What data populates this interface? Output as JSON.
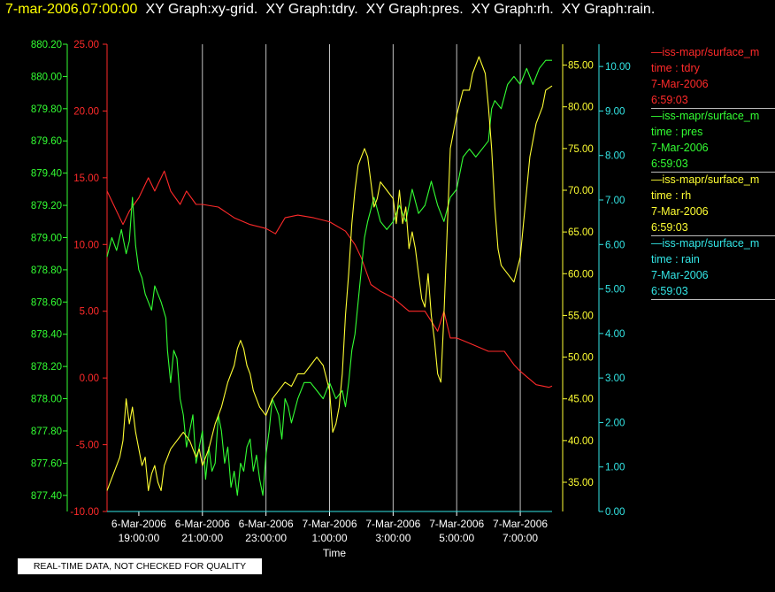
{
  "header": {
    "timestamp": "7-mar-2006,07:00:00",
    "graphs": [
      "XY Graph:xy-grid.",
      "XY Graph:tdry.",
      "XY Graph:pres.",
      "XY Graph:rh.",
      "XY Graph:rain."
    ]
  },
  "disclaimer": "REAL-TIME DATA, NOT CHECKED FOR QUALITY",
  "colors": {
    "tdry": "#ff2a2a",
    "pres": "#33ff33",
    "rh": "#ffff33",
    "rain": "#33e6e6",
    "grid": "#c0c0c0"
  },
  "chart_data": {
    "type": "line",
    "xlabel": "Time",
    "xlim": [
      "2006-03-06 18:00",
      "2006-03-07 07:00"
    ],
    "x_ticks": [
      {
        "date": "6-Mar-2006",
        "time": "19:00:00"
      },
      {
        "date": "6-Mar-2006",
        "time": "21:00:00"
      },
      {
        "date": "6-Mar-2006",
        "time": "23:00:00"
      },
      {
        "date": "7-Mar-2006",
        "time": "1:00:00"
      },
      {
        "date": "7-Mar-2006",
        "time": "3:00:00"
      },
      {
        "date": "7-Mar-2006",
        "time": "5:00:00"
      },
      {
        "date": "7-Mar-2006",
        "time": "7:00:00"
      }
    ],
    "grid": "vertical",
    "axes": {
      "pres": {
        "ylim": [
          877.3,
          880.2
        ],
        "ticks": [
          "880.20",
          "880.00",
          "879.80",
          "879.60",
          "879.40",
          "879.20",
          "879.00",
          "878.80",
          "878.60",
          "878.40",
          "878.20",
          "878.00",
          "877.80",
          "877.60",
          "877.40"
        ]
      },
      "tdry": {
        "ylim": [
          -10,
          25
        ],
        "ticks": [
          "25.00",
          "20.00",
          "15.00",
          "10.00",
          "5.00",
          "0.00",
          "-5.00",
          "-10.00"
        ]
      },
      "rh": {
        "ylim": [
          31.5,
          87.5
        ],
        "ticks": [
          "85.00",
          "80.00",
          "75.00",
          "70.00",
          "65.00",
          "60.00",
          "55.00",
          "50.00",
          "45.00",
          "40.00",
          "35.00"
        ]
      },
      "rain": {
        "ylim": [
          0,
          10.5
        ],
        "ticks": [
          "10.00",
          "9.00",
          "8.00",
          "7.00",
          "6.00",
          "5.00",
          "4.00",
          "3.00",
          "2.00",
          "1.00",
          "0.00"
        ]
      }
    },
    "legend": [
      {
        "key": "tdry",
        "series": "—iss-mapr/surface_m",
        "field": "time : tdry",
        "date": "7-Mar-2006",
        "time": "6:59:03"
      },
      {
        "key": "pres",
        "series": "—iss-mapr/surface_m",
        "field": "time : pres",
        "date": "7-Mar-2006",
        "time": "6:59:03"
      },
      {
        "key": "rh",
        "series": "—iss-mapr/surface_m",
        "field": "time : rh",
        "date": "7-Mar-2006",
        "time": "6:59:03"
      },
      {
        "key": "rain",
        "series": "—iss-mapr/surface_m",
        "field": "time : rain",
        "date": "7-Mar-2006",
        "time": "6:59:03"
      }
    ],
    "series": [
      {
        "key": "tdry",
        "axis": "tdry",
        "points": [
          [
            -1.0,
            14.0
          ],
          [
            -0.8,
            13.0
          ],
          [
            -0.5,
            11.5
          ],
          [
            -0.3,
            12.5
          ],
          [
            0.0,
            13.5
          ],
          [
            0.3,
            15.0
          ],
          [
            0.5,
            14.0
          ],
          [
            0.8,
            15.5
          ],
          [
            1.0,
            14.0
          ],
          [
            1.3,
            13.0
          ],
          [
            1.5,
            14.0
          ],
          [
            1.8,
            13.0
          ],
          [
            2.0,
            13.0
          ],
          [
            2.5,
            12.8
          ],
          [
            3.0,
            12.0
          ],
          [
            3.5,
            11.5
          ],
          [
            4.0,
            11.2
          ],
          [
            4.3,
            10.8
          ],
          [
            4.6,
            12.0
          ],
          [
            5.0,
            12.2
          ],
          [
            5.5,
            12.0
          ],
          [
            6.0,
            11.7
          ],
          [
            6.5,
            11.0
          ],
          [
            6.8,
            10.0
          ],
          [
            7.0,
            9.0
          ],
          [
            7.3,
            7.0
          ],
          [
            7.6,
            6.5
          ],
          [
            8.0,
            6.0
          ],
          [
            8.5,
            5.0
          ],
          [
            9.0,
            5.0
          ],
          [
            9.4,
            3.5
          ],
          [
            9.6,
            5.0
          ],
          [
            9.8,
            3.0
          ],
          [
            10.0,
            3.0
          ],
          [
            10.5,
            2.5
          ],
          [
            11.0,
            2.0
          ],
          [
            11.5,
            2.0
          ],
          [
            11.8,
            1.0
          ],
          [
            12.0,
            0.5
          ],
          [
            12.5,
            -0.5
          ],
          [
            12.9,
            -0.7
          ],
          [
            13.0,
            -0.6
          ]
        ]
      },
      {
        "key": "pres",
        "axis": "pres",
        "points": [
          [
            -1.0,
            878.88
          ],
          [
            -0.85,
            879.0
          ],
          [
            -0.7,
            878.92
          ],
          [
            -0.55,
            879.05
          ],
          [
            -0.4,
            878.9
          ],
          [
            -0.3,
            878.98
          ],
          [
            -0.2,
            879.25
          ],
          [
            -0.1,
            878.95
          ],
          [
            0.0,
            878.8
          ],
          [
            0.1,
            878.75
          ],
          [
            0.2,
            878.65
          ],
          [
            0.3,
            878.6
          ],
          [
            0.4,
            878.55
          ],
          [
            0.5,
            878.7
          ],
          [
            0.6,
            878.65
          ],
          [
            0.7,
            878.6
          ],
          [
            0.85,
            878.5
          ],
          [
            0.9,
            878.3
          ],
          [
            1.0,
            878.1
          ],
          [
            1.1,
            878.3
          ],
          [
            1.2,
            878.25
          ],
          [
            1.3,
            878.0
          ],
          [
            1.4,
            877.9
          ],
          [
            1.5,
            877.7
          ],
          [
            1.6,
            877.8
          ],
          [
            1.7,
            877.9
          ],
          [
            1.8,
            877.6
          ],
          [
            1.9,
            877.7
          ],
          [
            2.0,
            877.8
          ],
          [
            2.1,
            877.5
          ],
          [
            2.2,
            877.7
          ],
          [
            2.3,
            877.55
          ],
          [
            2.4,
            877.6
          ],
          [
            2.5,
            877.9
          ],
          [
            2.6,
            877.8
          ],
          [
            2.7,
            877.6
          ],
          [
            2.8,
            877.7
          ],
          [
            2.9,
            877.45
          ],
          [
            3.0,
            877.55
          ],
          [
            3.1,
            877.4
          ],
          [
            3.2,
            877.6
          ],
          [
            3.3,
            877.55
          ],
          [
            3.4,
            877.7
          ],
          [
            3.5,
            877.75
          ],
          [
            3.6,
            877.55
          ],
          [
            3.7,
            877.65
          ],
          [
            3.8,
            877.5
          ],
          [
            3.9,
            877.4
          ],
          [
            4.0,
            877.65
          ],
          [
            4.1,
            877.8
          ],
          [
            4.2,
            878.0
          ],
          [
            4.3,
            877.95
          ],
          [
            4.4,
            877.9
          ],
          [
            4.5,
            877.75
          ],
          [
            4.6,
            878.0
          ],
          [
            4.7,
            877.95
          ],
          [
            4.8,
            877.85
          ],
          [
            5.0,
            878.0
          ],
          [
            5.2,
            878.1
          ],
          [
            5.4,
            878.1
          ],
          [
            5.6,
            878.05
          ],
          [
            5.8,
            878.0
          ],
          [
            6.0,
            878.1
          ],
          [
            6.2,
            878.0
          ],
          [
            6.4,
            878.05
          ],
          [
            6.5,
            877.95
          ],
          [
            6.6,
            878.1
          ],
          [
            6.7,
            878.3
          ],
          [
            6.8,
            878.4
          ],
          [
            6.9,
            878.6
          ],
          [
            7.0,
            878.8
          ],
          [
            7.1,
            879.0
          ],
          [
            7.2,
            879.1
          ],
          [
            7.4,
            879.25
          ],
          [
            7.6,
            879.1
          ],
          [
            7.8,
            879.05
          ],
          [
            8.0,
            879.1
          ],
          [
            8.2,
            879.2
          ],
          [
            8.4,
            879.1
          ],
          [
            8.6,
            879.3
          ],
          [
            8.8,
            879.15
          ],
          [
            9.0,
            879.2
          ],
          [
            9.2,
            879.35
          ],
          [
            9.4,
            879.2
          ],
          [
            9.6,
            879.1
          ],
          [
            9.8,
            879.25
          ],
          [
            10.0,
            879.3
          ],
          [
            10.2,
            879.5
          ],
          [
            10.4,
            879.55
          ],
          [
            10.6,
            879.5
          ],
          [
            10.8,
            879.55
          ],
          [
            11.0,
            879.6
          ],
          [
            11.1,
            879.8
          ],
          [
            11.2,
            879.85
          ],
          [
            11.4,
            879.8
          ],
          [
            11.6,
            879.95
          ],
          [
            11.8,
            880.0
          ],
          [
            12.0,
            879.95
          ],
          [
            12.2,
            880.05
          ],
          [
            12.4,
            879.95
          ],
          [
            12.6,
            880.05
          ],
          [
            12.8,
            880.1
          ],
          [
            13.0,
            880.1
          ]
        ]
      },
      {
        "key": "rh",
        "axis": "rh",
        "points": [
          [
            -1.0,
            34.0
          ],
          [
            -0.8,
            36.0
          ],
          [
            -0.6,
            38.0
          ],
          [
            -0.5,
            40.0
          ],
          [
            -0.4,
            45.0
          ],
          [
            -0.3,
            42.0
          ],
          [
            -0.2,
            44.0
          ],
          [
            -0.1,
            41.0
          ],
          [
            0.0,
            39.0
          ],
          [
            0.1,
            37.0
          ],
          [
            0.2,
            38.0
          ],
          [
            0.3,
            34.0
          ],
          [
            0.4,
            36.0
          ],
          [
            0.5,
            37.0
          ],
          [
            0.6,
            35.0
          ],
          [
            0.7,
            34.0
          ],
          [
            0.8,
            37.0
          ],
          [
            1.0,
            39.0
          ],
          [
            1.2,
            40.0
          ],
          [
            1.4,
            41.0
          ],
          [
            1.6,
            40.0
          ],
          [
            1.8,
            38.0
          ],
          [
            1.9,
            39.0
          ],
          [
            2.0,
            37.0
          ],
          [
            2.2,
            39.0
          ],
          [
            2.4,
            42.0
          ],
          [
            2.6,
            44.0
          ],
          [
            2.8,
            47.0
          ],
          [
            3.0,
            49.0
          ],
          [
            3.1,
            51.0
          ],
          [
            3.2,
            52.0
          ],
          [
            3.3,
            51.0
          ],
          [
            3.4,
            49.0
          ],
          [
            3.5,
            48.0
          ],
          [
            3.6,
            46.0
          ],
          [
            3.8,
            44.0
          ],
          [
            4.0,
            43.0
          ],
          [
            4.2,
            45.0
          ],
          [
            4.4,
            46.0
          ],
          [
            4.6,
            47.0
          ],
          [
            4.8,
            46.5
          ],
          [
            5.0,
            48.0
          ],
          [
            5.2,
            48.0
          ],
          [
            5.4,
            49.0
          ],
          [
            5.6,
            50.0
          ],
          [
            5.8,
            49.0
          ],
          [
            6.0,
            46.0
          ],
          [
            6.1,
            41.0
          ],
          [
            6.2,
            42.0
          ],
          [
            6.3,
            44.0
          ],
          [
            6.4,
            48.0
          ],
          [
            6.5,
            55.0
          ],
          [
            6.6,
            60.0
          ],
          [
            6.7,
            66.0
          ],
          [
            6.8,
            70.0
          ],
          [
            6.9,
            73.0
          ],
          [
            7.0,
            74.0
          ],
          [
            7.1,
            75.0
          ],
          [
            7.2,
            74.0
          ],
          [
            7.3,
            71.0
          ],
          [
            7.4,
            68.0
          ],
          [
            7.5,
            69.0
          ],
          [
            7.6,
            71.0
          ],
          [
            7.8,
            70.0
          ],
          [
            8.0,
            69.0
          ],
          [
            8.1,
            66.0
          ],
          [
            8.2,
            70.0
          ],
          [
            8.3,
            66.0
          ],
          [
            8.4,
            68.0
          ],
          [
            8.5,
            63.0
          ],
          [
            8.6,
            65.0
          ],
          [
            8.7,
            63.0
          ],
          [
            8.8,
            60.0
          ],
          [
            8.9,
            57.0
          ],
          [
            9.0,
            56.0
          ],
          [
            9.1,
            60.0
          ],
          [
            9.2,
            55.0
          ],
          [
            9.3,
            52.0
          ],
          [
            9.4,
            48.0
          ],
          [
            9.5,
            47.0
          ],
          [
            9.6,
            55.0
          ],
          [
            9.7,
            65.0
          ],
          [
            9.8,
            75.0
          ],
          [
            10.0,
            79.0
          ],
          [
            10.2,
            82.0
          ],
          [
            10.4,
            82.0
          ],
          [
            10.5,
            84.0
          ],
          [
            10.7,
            86.0
          ],
          [
            10.9,
            84.0
          ],
          [
            11.0,
            80.0
          ],
          [
            11.1,
            75.0
          ],
          [
            11.2,
            68.0
          ],
          [
            11.3,
            63.0
          ],
          [
            11.4,
            61.0
          ],
          [
            11.6,
            60.0
          ],
          [
            11.8,
            59.0
          ],
          [
            12.0,
            62.0
          ],
          [
            12.1,
            66.0
          ],
          [
            12.3,
            74.0
          ],
          [
            12.5,
            78.0
          ],
          [
            12.7,
            80.0
          ],
          [
            12.8,
            82.0
          ],
          [
            13.0,
            82.5
          ]
        ]
      },
      {
        "key": "rain",
        "axis": "rain",
        "points": [
          [
            -1.0,
            0.0
          ],
          [
            13.0,
            0.0
          ]
        ]
      }
    ]
  }
}
